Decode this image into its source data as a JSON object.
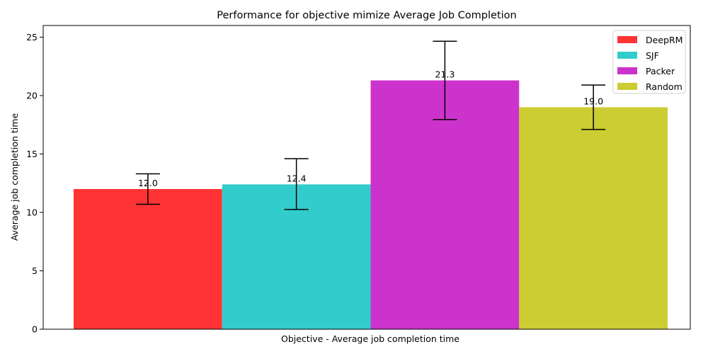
{
  "chart_data": {
    "type": "bar",
    "title": "Performance for objective mimize Average Job Completion",
    "xlabel": "Objective - Average job completion time",
    "ylabel": "Average job completion time",
    "ylim": [
      0,
      26
    ],
    "yticks": [
      0,
      5,
      10,
      15,
      20,
      25
    ],
    "grid": false,
    "legend_position": "top-right",
    "series": [
      {
        "name": "DeepRM",
        "value": 12.0,
        "error_low": 10.7,
        "error_high": 13.3,
        "color": "#ff3333",
        "label": "12.0"
      },
      {
        "name": "SJF",
        "value": 12.4,
        "error_low": 10.25,
        "error_high": 14.6,
        "color": "#33cccc",
        "label": "12.4"
      },
      {
        "name": "Packer",
        "value": 21.3,
        "error_low": 17.95,
        "error_high": 24.65,
        "color": "#cc33cc",
        "label": "21.3"
      },
      {
        "name": "Random",
        "value": 19.0,
        "error_low": 17.1,
        "error_high": 20.9,
        "color": "#cccc33",
        "label": "19.0"
      }
    ]
  }
}
